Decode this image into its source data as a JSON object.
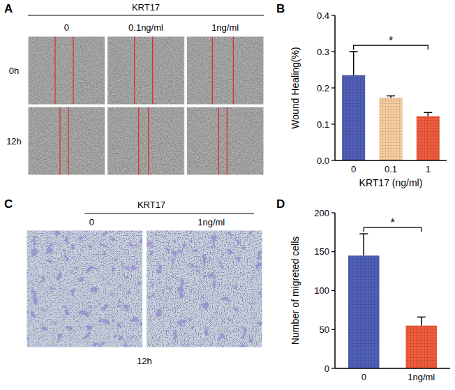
{
  "panel_labels": [
    "A",
    "B",
    "C",
    "D"
  ],
  "image_panels": [
    {
      "header": "KRT17",
      "columns": [
        "0",
        "0.1ng/ml",
        "1ng/ml"
      ],
      "rows": [
        "0h",
        "12h"
      ]
    },
    {
      "header": "KRT17",
      "columns": [
        "0",
        "1ng/ml"
      ],
      "caption": "12h"
    }
  ],
  "chart_data": [
    {
      "type": "bar",
      "categories": [
        "0",
        "0.1",
        "1"
      ],
      "values": [
        0.235,
        0.173,
        0.122
      ],
      "errors": [
        0.065,
        0.005,
        0.01
      ],
      "colors": [
        "#5060b8",
        "#f9cfa0",
        "#f25c3c"
      ],
      "x_label": "KRT17 (ng/ml)",
      "y_label": "Wound Healing(%)",
      "ylim": [
        0,
        0.4
      ],
      "yticks": [
        {
          "value": 0,
          "label": "0.0"
        },
        0.1,
        0.2,
        0.3,
        0.4
      ],
      "annotations": [
        {
          "text": "*",
          "between": [
            "0",
            "1"
          ]
        }
      ]
    },
    {
      "type": "bar",
      "categories": [
        "0",
        "1ng/ml"
      ],
      "values": [
        145,
        55
      ],
      "errors": [
        28,
        11
      ],
      "colors": [
        "#5060b8",
        "#f25c3c"
      ],
      "y_label": "Number of migreted cells",
      "ylim": [
        0,
        200
      ],
      "yticks": [
        0,
        50,
        100,
        150,
        200
      ],
      "annotations": [
        {
          "text": "*",
          "between": [
            "0",
            "1ng/ml"
          ]
        }
      ]
    }
  ]
}
